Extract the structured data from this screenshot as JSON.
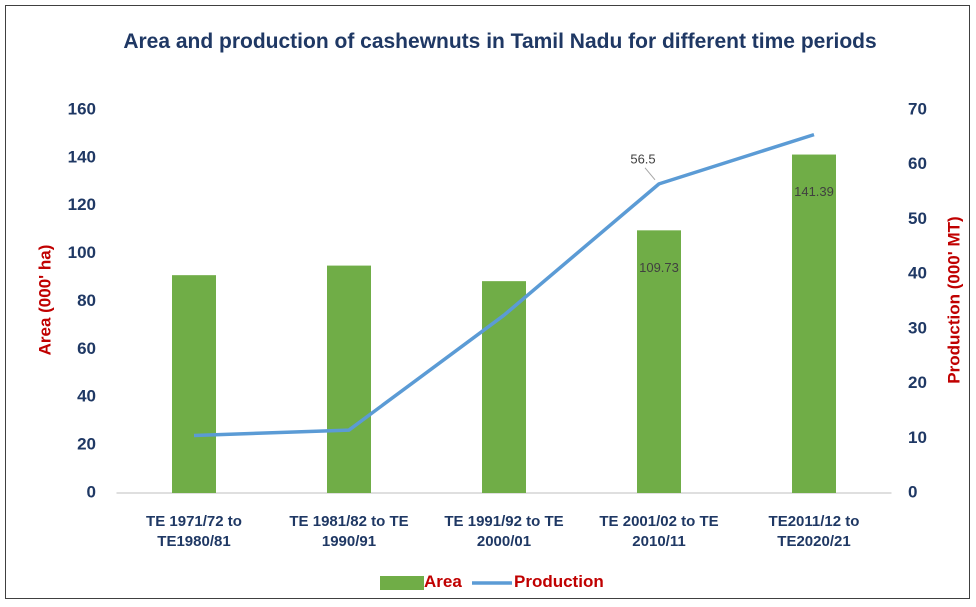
{
  "chart_data": {
    "type": "bar_line",
    "title": "Area and production of cashewnuts in Tamil Nadu for different time periods",
    "categories": [
      "TE 1971/72 to TE1980/81",
      "TE 1981/82 to TE 1990/91",
      "TE 1991/92 to TE 2000/01",
      "TE 2001/02 to TE 2010/11",
      "TE2011/12 to TE2020/21"
    ],
    "y_label": "Area (000' ha)",
    "y2_label": "Production (000' MT)",
    "ylim": [
      0,
      160
    ],
    "yticks": [
      0,
      20,
      40,
      60,
      80,
      100,
      120,
      140,
      160
    ],
    "y2lim": [
      0,
      70
    ],
    "y2ticks": [
      0,
      10,
      20,
      30,
      40,
      50,
      60,
      70
    ],
    "series": [
      {
        "name": "Area",
        "type": "bar",
        "color": "#70ad47",
        "values": [
          91,
          95,
          88.5,
          109.73,
          141.39
        ],
        "data_labels": [
          false,
          false,
          false,
          true,
          true
        ]
      },
      {
        "name": "Production",
        "type": "line",
        "axis": "y2",
        "color": "#5b9bd5",
        "values": [
          10.5,
          11.5,
          32.5,
          56.5,
          65.5
        ],
        "data_labels": [
          false,
          false,
          false,
          true,
          false
        ]
      }
    ],
    "legend": "bottom",
    "grid": false
  }
}
